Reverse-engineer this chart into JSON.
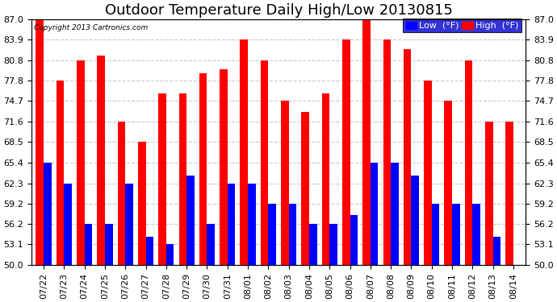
{
  "title": "Outdoor Temperature Daily High/Low 20130815",
  "copyright": "Copyright 2013 Cartronics.com",
  "legend_low": "Low  (°F)",
  "legend_high": "High  (°F)",
  "dates": [
    "07/22",
    "07/23",
    "07/24",
    "07/25",
    "07/26",
    "07/27",
    "07/28",
    "07/29",
    "07/30",
    "07/31",
    "08/01",
    "08/02",
    "08/03",
    "08/04",
    "08/05",
    "08/06",
    "08/07",
    "08/08",
    "08/09",
    "08/10",
    "08/11",
    "08/12",
    "08/13",
    "08/14"
  ],
  "highs": [
    87.0,
    77.8,
    80.8,
    81.5,
    71.6,
    68.5,
    75.8,
    75.8,
    78.8,
    79.5,
    83.9,
    80.8,
    74.7,
    73.0,
    75.8,
    83.9,
    87.0,
    83.9,
    82.5,
    77.8,
    74.7,
    80.8,
    71.6,
    71.6
  ],
  "lows": [
    65.4,
    62.3,
    56.2,
    56.2,
    62.3,
    54.2,
    53.1,
    63.5,
    56.2,
    62.3,
    62.3,
    59.2,
    59.2,
    56.2,
    56.2,
    57.5,
    65.4,
    65.4,
    63.5,
    59.2,
    59.2,
    59.2,
    54.2,
    50.0
  ],
  "ymin": 50.0,
  "ymax": 87.0,
  "yticks": [
    50.0,
    53.1,
    56.2,
    59.2,
    62.3,
    65.4,
    68.5,
    71.6,
    74.7,
    77.8,
    80.8,
    83.9,
    87.0
  ],
  "high_color": "#FF0000",
  "low_color": "#0000FF",
  "bg_color": "#FFFFFF",
  "grid_color": "#BBBBBB",
  "bar_width": 0.38,
  "title_fontsize": 13,
  "tick_fontsize": 8,
  "legend_bg": "#0000CC",
  "legend_fontsize": 8
}
